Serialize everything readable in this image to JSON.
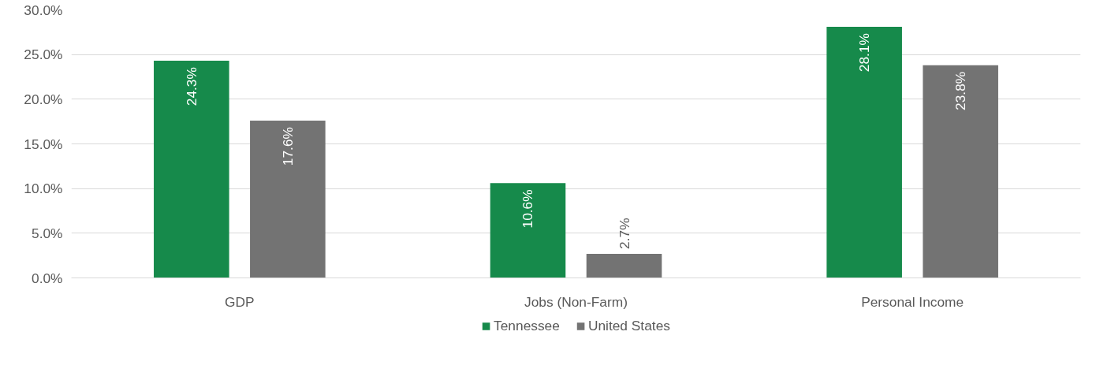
{
  "chart_data": {
    "type": "bar",
    "categories": [
      "GDP",
      "Jobs (Non-Farm)",
      "Personal Income"
    ],
    "series": [
      {
        "name": "Tennessee",
        "color": "#168a4b",
        "values": [
          24.3,
          10.6,
          28.1
        ],
        "value_labels": [
          "24.3%",
          "10.6%",
          "28.1%"
        ]
      },
      {
        "name": "United States",
        "color": "#737373",
        "values": [
          17.6,
          2.7,
          23.8
        ],
        "value_labels": [
          "17.6%",
          "2.7%",
          "23.8%"
        ]
      }
    ],
    "ylim": [
      0,
      30
    ],
    "yticks": [
      {
        "value": 0,
        "label": "0.0%"
      },
      {
        "value": 5,
        "label": "5.0%"
      },
      {
        "value": 10,
        "label": "10.0%"
      },
      {
        "value": 15,
        "label": "15.0%"
      },
      {
        "value": 20,
        "label": "20.0%"
      },
      {
        "value": 25,
        "label": "25.0%"
      },
      {
        "value": 30,
        "label": "30.0%"
      }
    ],
    "grid": "y",
    "legend": "bottom"
  }
}
